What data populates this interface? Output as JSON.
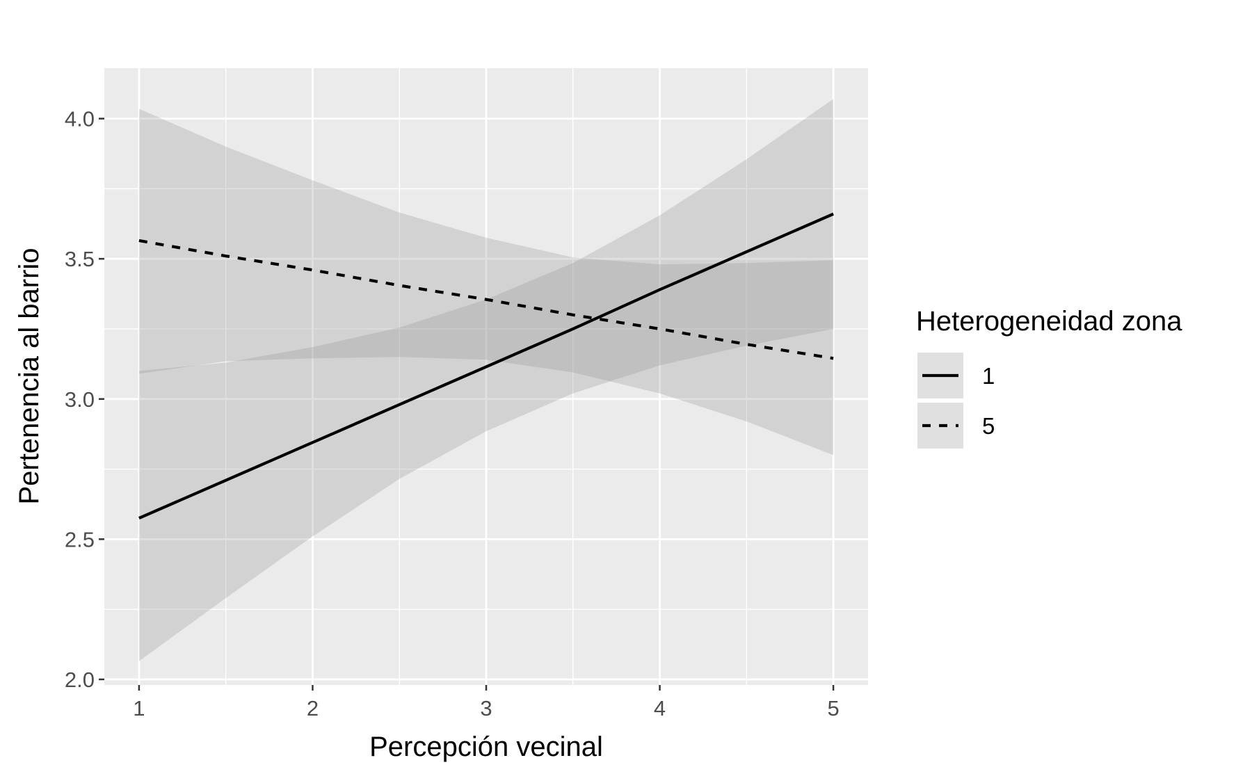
{
  "chart_data": {
    "type": "line",
    "xlabel": "Percepción vecinal",
    "ylabel": "Pertenencia al barrio",
    "xlim": [
      0.8,
      5.2
    ],
    "ylim": [
      1.98,
      4.18
    ],
    "x_ticks": [
      1,
      2,
      3,
      4,
      5
    ],
    "y_ticks": [
      2.0,
      2.5,
      3.0,
      3.5,
      4.0
    ],
    "x_tick_labels": [
      "1",
      "2",
      "3",
      "4",
      "5"
    ],
    "y_tick_labels": [
      "2.0",
      "2.5",
      "3.0",
      "3.5",
      "4.0"
    ],
    "grid": true,
    "legend_placement": "right",
    "legend_title": "Heterogeneidad zona",
    "colors": {
      "panel": "#ebebeb",
      "grid": "#ffffff",
      "line": "#000000",
      "ribbon": "#999999"
    },
    "series": [
      {
        "name": "1",
        "line_style": "solid",
        "x": [
          1,
          1.5,
          2,
          2.5,
          3,
          3.5,
          4,
          4.5,
          5
        ],
        "y": [
          2.575,
          2.71,
          2.845,
          2.98,
          3.115,
          3.25,
          3.39,
          3.525,
          3.66
        ],
        "lower": [
          2.065,
          2.29,
          2.51,
          2.715,
          2.885,
          3.02,
          3.12,
          3.19,
          3.25
        ],
        "upper": [
          3.1,
          3.13,
          3.185,
          3.255,
          3.355,
          3.485,
          3.655,
          3.855,
          4.07
        ]
      },
      {
        "name": "5",
        "line_style": "dashed",
        "x": [
          1,
          1.5,
          2,
          2.5,
          3,
          3.5,
          4,
          4.5,
          5
        ],
        "y": [
          3.565,
          3.51,
          3.46,
          3.405,
          3.355,
          3.3,
          3.25,
          3.195,
          3.145
        ],
        "lower": [
          3.09,
          3.135,
          3.145,
          3.15,
          3.14,
          3.095,
          3.02,
          2.92,
          2.8
        ],
        "upper": [
          4.035,
          3.9,
          3.78,
          3.665,
          3.575,
          3.505,
          3.48,
          3.485,
          3.495
        ]
      }
    ]
  }
}
